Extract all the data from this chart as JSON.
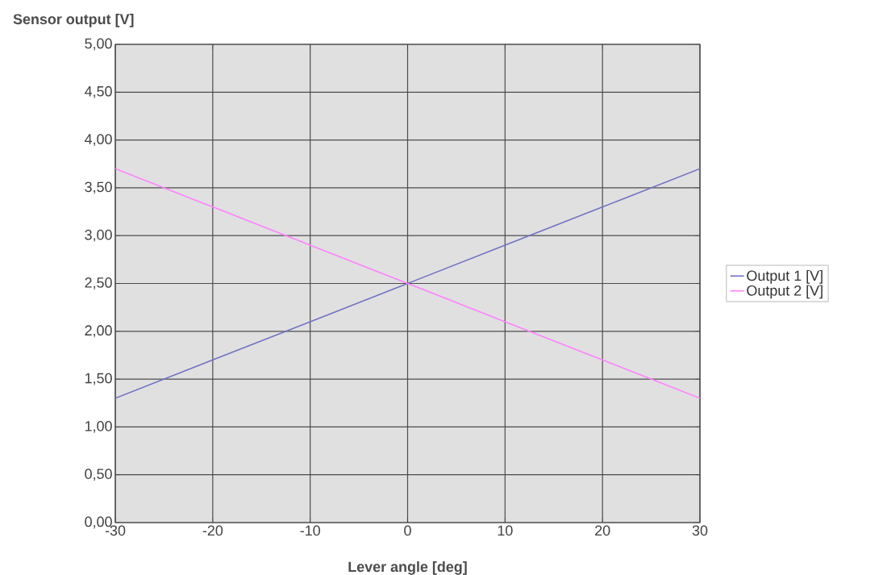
{
  "chart_data": {
    "type": "line",
    "xlabel": "Lever angle [deg]",
    "ylabel": "Sensor output [V]",
    "x": [
      -30,
      -20,
      -10,
      0,
      10,
      20,
      30
    ],
    "series": [
      {
        "name": "Output 1 [V]",
        "color": "#7272c4",
        "values": [
          1.3,
          1.7,
          2.1,
          2.5,
          2.9,
          3.3,
          3.7
        ]
      },
      {
        "name": "Output 2 [V]",
        "color": "#ff80ff",
        "values": [
          3.7,
          3.3,
          2.9,
          2.5,
          2.1,
          1.7,
          1.3
        ]
      }
    ],
    "xlim": [
      -30,
      30
    ],
    "xticks": [
      -30,
      -20,
      -10,
      0,
      10,
      20,
      30
    ],
    "ylim": [
      0,
      5
    ],
    "yticks": [
      {
        "value": 0,
        "label": "0,00"
      },
      {
        "value": 0.5,
        "label": "0,50"
      },
      {
        "value": 1,
        "label": "1,00"
      },
      {
        "value": 1.5,
        "label": "1,50"
      },
      {
        "value": 2,
        "label": "2,00"
      },
      {
        "value": 2.5,
        "label": "2,50"
      },
      {
        "value": 3,
        "label": "3,00"
      },
      {
        "value": 3.5,
        "label": "3,50"
      },
      {
        "value": 4,
        "label": "4,00"
      },
      {
        "value": 4.5,
        "label": "4,50"
      },
      {
        "value": 5,
        "label": "5,00"
      }
    ],
    "grid": true,
    "legend": "right",
    "marker": "none",
    "line_style": "solid"
  }
}
